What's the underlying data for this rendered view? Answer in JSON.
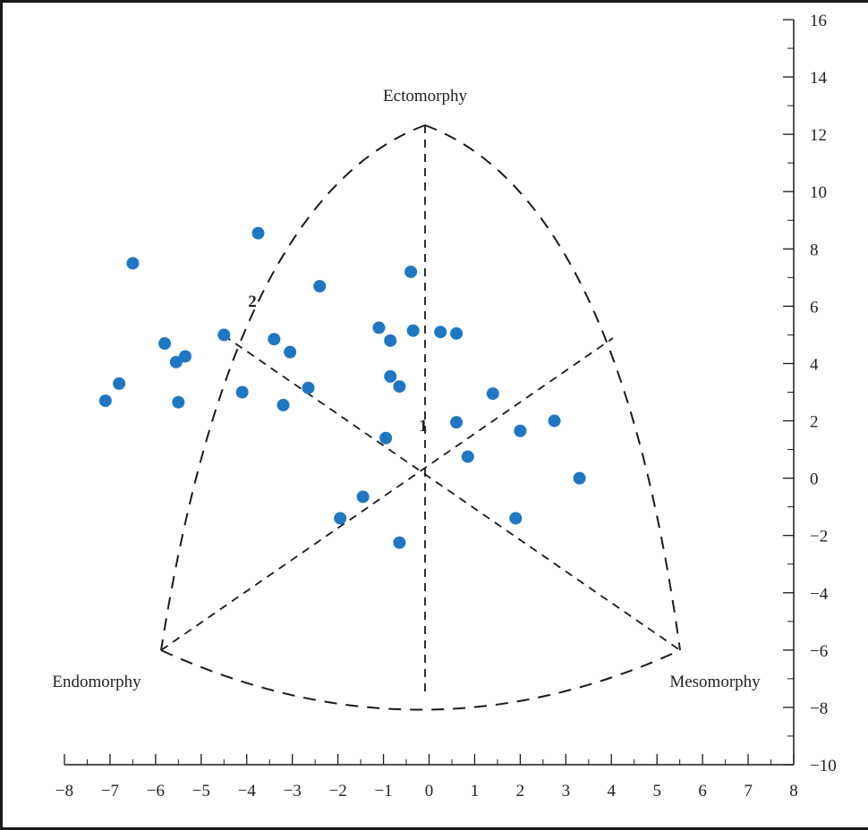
{
  "chart_data": {
    "type": "scatter",
    "title": "",
    "xlabel": "",
    "ylabel": "",
    "xlim": [
      -8,
      8
    ],
    "ylim": [
      -10,
      16
    ],
    "x_ticks": [
      -8,
      -7,
      -6,
      -5,
      -4,
      -3,
      -2,
      -1,
      0,
      1,
      2,
      3,
      4,
      5,
      6,
      7,
      8
    ],
    "y_ticks": [
      16,
      14,
      12,
      10,
      8,
      6,
      4,
      2,
      0,
      -2,
      -4,
      -6,
      -8,
      -10
    ],
    "corner_labels": {
      "top": "Ectomorphy",
      "left": "Endomorphy",
      "right": "Mesomorphy"
    },
    "region_labels": [
      "1",
      "2"
    ],
    "marker_color": "#1f77c4",
    "series": [
      {
        "points": [
          [
            -6.5,
            7.5
          ],
          [
            -7.1,
            2.7
          ],
          [
            -6.8,
            3.3
          ],
          [
            -5.8,
            4.7
          ],
          [
            -5.55,
            4.05
          ],
          [
            -5.35,
            4.25
          ],
          [
            -5.5,
            2.65
          ],
          [
            -4.5,
            5.0
          ],
          [
            -4.1,
            3.0
          ],
          [
            -3.75,
            8.55
          ],
          [
            -3.4,
            4.85
          ],
          [
            -3.2,
            2.55
          ],
          [
            -3.05,
            4.4
          ],
          [
            -2.65,
            3.15
          ],
          [
            -2.4,
            6.7
          ],
          [
            -1.1,
            5.25
          ],
          [
            -0.85,
            4.8
          ],
          [
            -0.85,
            3.55
          ],
          [
            -0.35,
            5.15
          ],
          [
            -0.4,
            7.2
          ],
          [
            -0.65,
            3.2
          ],
          [
            -0.95,
            1.4
          ],
          [
            0.25,
            5.1
          ],
          [
            0.6,
            5.05
          ],
          [
            0.6,
            1.95
          ],
          [
            0.85,
            0.75
          ],
          [
            1.4,
            2.95
          ],
          [
            2.0,
            1.65
          ],
          [
            2.75,
            2.0
          ],
          [
            3.3,
            0.0
          ],
          [
            1.9,
            -1.4
          ],
          [
            -1.45,
            -0.65
          ],
          [
            -1.95,
            -1.4
          ],
          [
            -0.65,
            -2.25
          ]
        ]
      }
    ]
  }
}
